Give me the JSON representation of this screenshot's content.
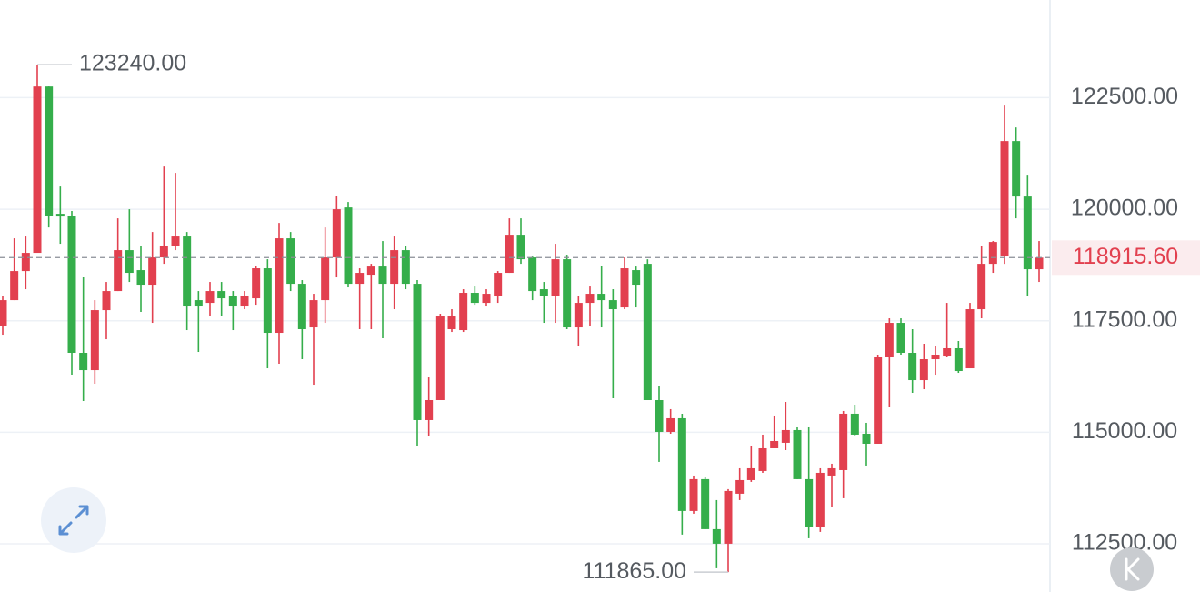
{
  "chart_data": {
    "type": "candlestick",
    "open": [
      117392,
      117962,
      118614,
      119022,
      122750,
      119898,
      119857,
      116781,
      116393,
      117738,
      118166,
      119083,
      118635,
      118309,
      118920,
      119185,
      119389,
      117962,
      117901,
      118166,
      118064,
      117820,
      118003,
      118676,
      117229,
      119348,
      118329,
      117351,
      117962,
      118920,
      120040,
      118329,
      118533,
      118716,
      118329,
      119083,
      118329,
      115273,
      115721,
      117311,
      117290,
      118126,
      117901,
      118064,
      118574,
      119429,
      118920,
      118207,
      118064,
      118879,
      117351,
      117901,
      118105,
      117962,
      117799,
      118635,
      118777,
      115721,
      115008,
      115314,
      113236,
      113949,
      112828,
      112502,
      113623,
      113928,
      114132,
      114641,
      114764,
      115049,
      113949,
      112869,
      114030,
      114152,
      115416,
      114967,
      114743,
      116679,
      117453,
      116781,
      116169,
      116638,
      116699,
      116883,
      116434,
      117759,
      118777,
      118961,
      121528,
      120285,
      118655
    ],
    "high": [
      118064,
      119348,
      119389,
      123240,
      122750,
      120509,
      119960,
      118472,
      117962,
      118370,
      119796,
      120000,
      119185,
      119490,
      120957,
      120815,
      119490,
      118166,
      118370,
      118370,
      118166,
      118166,
      118737,
      118879,
      119694,
      119490,
      118411,
      118105,
      119592,
      120305,
      120163,
      118676,
      118777,
      119287,
      119389,
      119185,
      118411,
      116230,
      117657,
      117759,
      118207,
      118268,
      118207,
      118614,
      119796,
      119796,
      118940,
      118370,
      119226,
      118981,
      118064,
      118268,
      118737,
      118207,
      118920,
      118716,
      118879,
      116027,
      115518,
      115416,
      114030,
      113989,
      113480,
      113725,
      114193,
      114702,
      114947,
      115375,
      115680,
      115110,
      115110,
      114193,
      114295,
      115477,
      115619,
      115212,
      116740,
      117555,
      117555,
      117311,
      116985,
      116944,
      117901,
      117046,
      117901,
      119185,
      119287,
      122323,
      121833,
      120774,
      119287
    ],
    "low": [
      117188,
      117962,
      118207,
      119022,
      119592,
      119226,
      116291,
      115701,
      116088,
      117086,
      118166,
      118370,
      117698,
      117453,
      118777,
      119083,
      117290,
      116801,
      117616,
      117616,
      117290,
      117759,
      117860,
      116434,
      116536,
      118166,
      116638,
      116067,
      117453,
      118472,
      118248,
      117311,
      117311,
      117107,
      117759,
      118207,
      114702,
      114906,
      115721,
      117249,
      117249,
      117860,
      117820,
      117901,
      118574,
      118777,
      117962,
      117453,
      117453,
      117311,
      116944,
      117392,
      117351,
      115762,
      117759,
      117799,
      115721,
      114336,
      114967,
      112706,
      113175,
      112828,
      111952,
      111865,
      113480,
      113888,
      114091,
      114641,
      114600,
      113949,
      112624,
      112767,
      113317,
      113521,
      114906,
      114254,
      114743,
      115558,
      116740,
      115884,
      115965,
      116291,
      116679,
      116332,
      116434,
      117555,
      118574,
      118777,
      119796,
      118064,
      118370
    ],
    "close": [
      117962,
      118614,
      119022,
      122750,
      119857,
      119837,
      116781,
      116393,
      117738,
      118166,
      119083,
      118574,
      118309,
      118920,
      119185,
      119389,
      117820,
      117820,
      118166,
      118003,
      117820,
      118064,
      118676,
      117229,
      119348,
      118329,
      117311,
      117962,
      118920,
      120000,
      118329,
      118574,
      118716,
      118329,
      119083,
      118329,
      115273,
      115721,
      117596,
      117596,
      118126,
      117901,
      118105,
      118574,
      119429,
      118879,
      118166,
      118064,
      118879,
      117351,
      117901,
      118105,
      117962,
      117759,
      118676,
      118309,
      115721,
      115008,
      115314,
      113236,
      113949,
      112828,
      112502,
      113684,
      113928,
      114193,
      114641,
      114804,
      115049,
      113949,
      112869,
      114091,
      114193,
      115416,
      114947,
      114743,
      116679,
      117453,
      116781,
      116169,
      116638,
      116740,
      116883,
      116373,
      117759,
      118777,
      119266,
      121528,
      120285,
      118655,
      118915.6
    ],
    "up_color": "#e2404f",
    "down_color": "#35ae4b",
    "ylim": [
      111420,
      124690
    ],
    "yticks": [
      {
        "value": 112500,
        "label": "112500.00"
      },
      {
        "value": 115000,
        "label": "115000.00"
      },
      {
        "value": 117500,
        "label": "117500.00"
      },
      {
        "value": 120000,
        "label": "120000.00"
      },
      {
        "value": 122500,
        "label": "122500.00"
      }
    ],
    "grid": true,
    "max_label": "123240.00",
    "min_label": "111865.00",
    "last_label": "118915.60"
  }
}
